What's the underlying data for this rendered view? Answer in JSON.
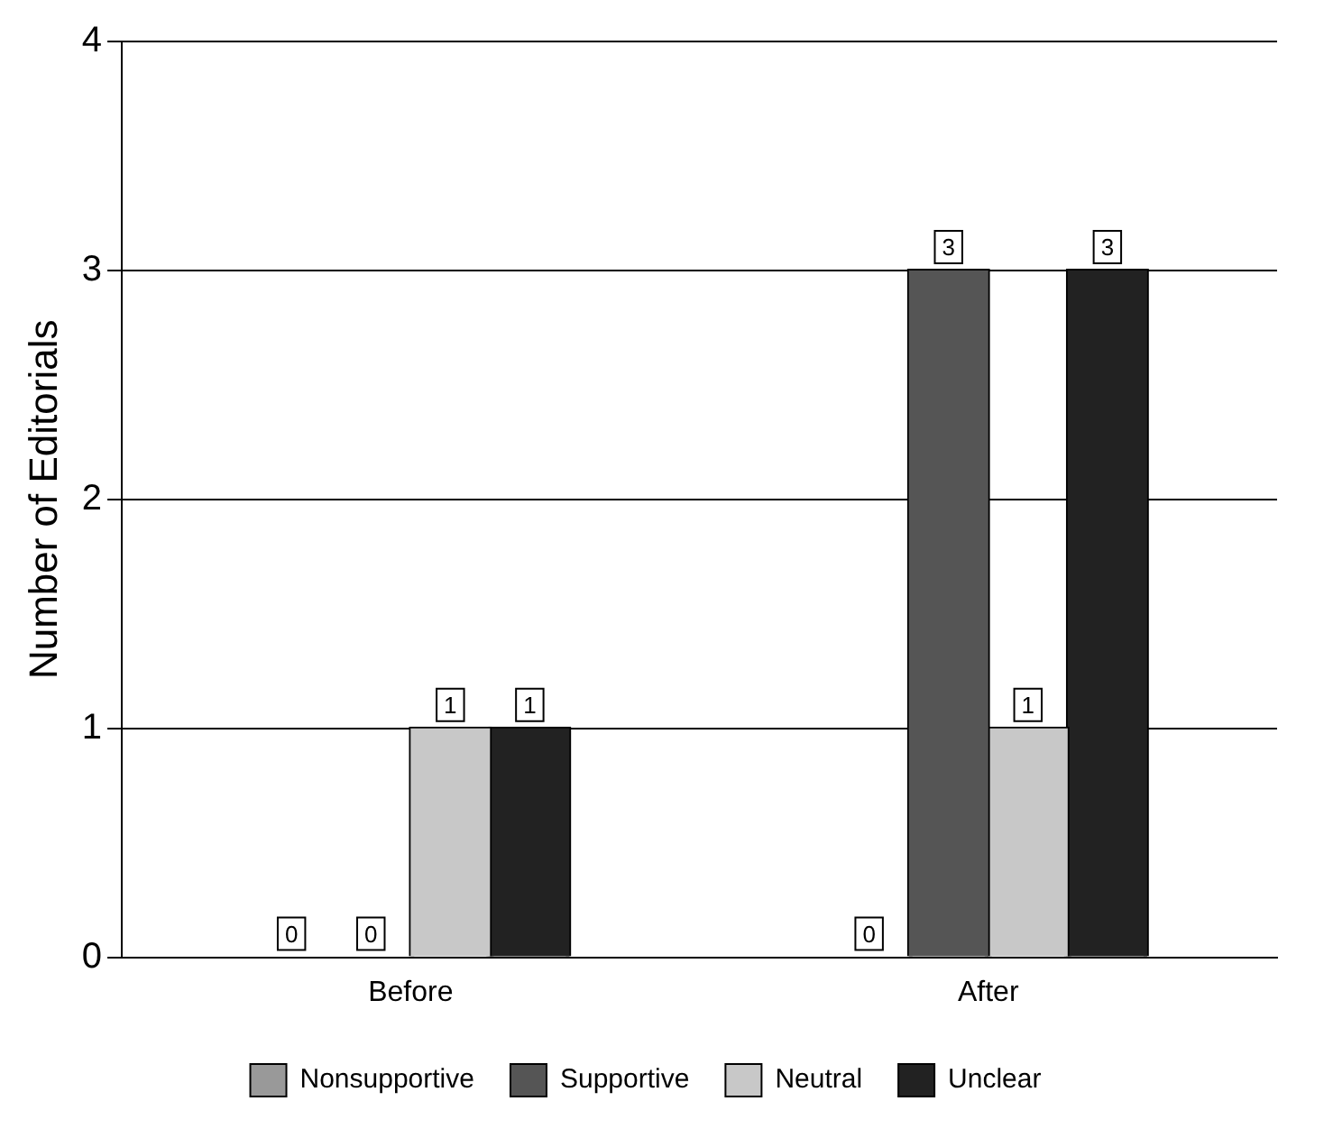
{
  "chart_data": {
    "type": "bar",
    "ylabel": "Number of Editorials",
    "categories": [
      "Before",
      "After"
    ],
    "series": [
      {
        "name": "Nonsupportive",
        "color": "#999999",
        "values": [
          0,
          0
        ]
      },
      {
        "name": "Supportive",
        "color": "#555555",
        "values": [
          0,
          3
        ]
      },
      {
        "name": "Neutral",
        "color": "#c8c8c8",
        "values": [
          1,
          1
        ]
      },
      {
        "name": "Unclear",
        "color": "#222222",
        "values": [
          1,
          3
        ]
      }
    ],
    "ylim": [
      0,
      4
    ],
    "yticks": [
      0,
      1,
      2,
      3,
      4
    ],
    "grid": "y",
    "legend": "bottom",
    "data_labels": true
  }
}
